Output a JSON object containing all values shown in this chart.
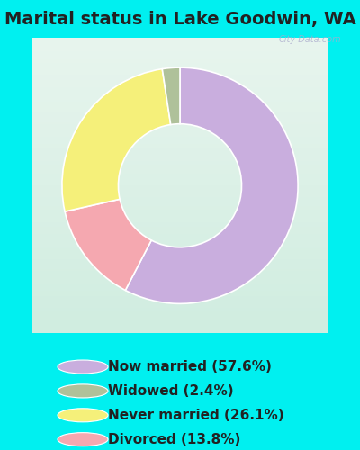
{
  "title": "Marital status in Lake Goodwin, WA",
  "legend_labels": [
    "Now married (57.6%)",
    "Widowed (2.4%)",
    "Never married (26.1%)",
    "Divorced (13.8%)"
  ],
  "legend_colors": [
    "#c9aede",
    "#afc19a",
    "#f5f07a",
    "#f5a8b0"
  ],
  "pie_sizes": [
    57.6,
    13.8,
    26.1,
    2.4
  ],
  "pie_colors": [
    "#c9aede",
    "#f5a8b0",
    "#f5f07a",
    "#afc19a"
  ],
  "outer_bg": "#00f0f0",
  "chart_bg_top": "#e8f5ee",
  "chart_bg_bottom": "#d0ede0",
  "watermark": "City-Data.com",
  "title_fontsize": 14,
  "legend_fontsize": 11,
  "donut_width": 0.42,
  "start_angle": 90
}
